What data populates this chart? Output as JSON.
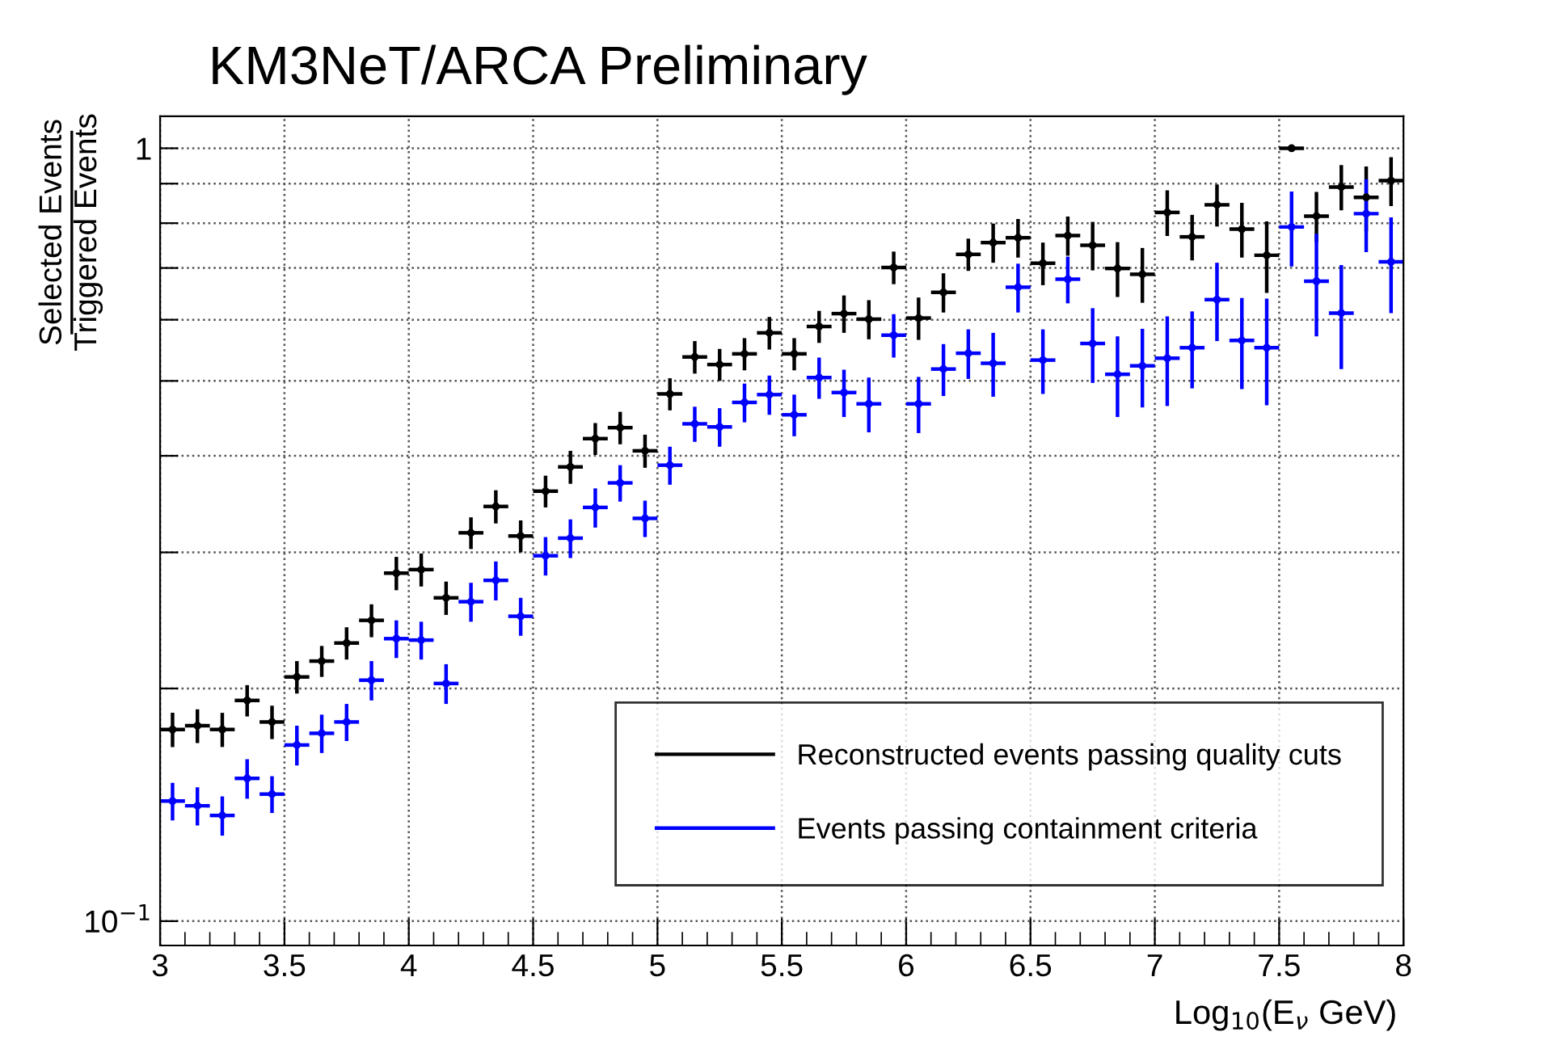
{
  "chart_data": {
    "type": "scatter",
    "title": "KM3NeT/ARCA Preliminary",
    "xlabel": "Log$_{10}$(E$_{ν}$ GeV)",
    "ylabel": "Selected Events\nTriggered Events",
    "x": [
      3.05,
      3.15,
      3.25,
      3.35,
      3.45,
      3.55,
      3.65,
      3.75,
      3.85,
      3.95,
      4.05,
      4.15,
      4.25,
      4.35,
      4.45,
      4.55,
      4.65,
      4.75,
      4.85,
      4.95,
      5.05,
      5.15,
      5.25,
      5.35,
      5.45,
      5.55,
      5.65,
      5.75,
      5.85,
      5.95,
      6.05,
      6.15,
      6.25,
      6.35,
      6.45,
      6.55,
      6.65,
      6.75,
      6.85,
      6.95,
      7.05,
      7.15,
      7.25,
      7.35,
      7.45,
      7.55,
      7.65,
      7.75,
      7.85,
      7.95
    ],
    "series": [
      {
        "name": "Reconstructed events passing quality cuts",
        "color": "#000000",
        "values": [
          0.177,
          0.179,
          0.177,
          0.193,
          0.181,
          0.207,
          0.217,
          0.229,
          0.245,
          0.282,
          0.285,
          0.262,
          0.318,
          0.344,
          0.315,
          0.36,
          0.387,
          0.421,
          0.435,
          0.406,
          0.481,
          0.537,
          0.525,
          0.542,
          0.577,
          0.542,
          0.588,
          0.611,
          0.601,
          0.701,
          0.603,
          0.651,
          0.729,
          0.755,
          0.766,
          0.71,
          0.771,
          0.749,
          0.699,
          0.687,
          0.826,
          0.768,
          0.845,
          0.786,
          0.727,
          1.0,
          0.817,
          0.891,
          0.864,
          0.908
        ],
        "errors": [
          0.009,
          0.009,
          0.009,
          0.009,
          0.009,
          0.01,
          0.01,
          0.011,
          0.012,
          0.014,
          0.014,
          0.013,
          0.015,
          0.017,
          0.015,
          0.017,
          0.019,
          0.02,
          0.021,
          0.02,
          0.023,
          0.026,
          0.025,
          0.026,
          0.028,
          0.026,
          0.028,
          0.034,
          0.035,
          0.034,
          0.038,
          0.038,
          0.035,
          0.044,
          0.044,
          0.045,
          0.045,
          0.054,
          0.057,
          0.056,
          0.056,
          0.052,
          0.053,
          0.064,
          0.077,
          null,
          0.061,
          0.06,
          0.083,
          0.066
        ],
        "xerrors": [
          0.05,
          0.05,
          0.05,
          0.05,
          0.05,
          0.05,
          0.05,
          0.05,
          0.05,
          0.05,
          0.05,
          0.05,
          0.05,
          0.05,
          0.05,
          0.05,
          0.05,
          0.05,
          0.05,
          0.05,
          0.05,
          0.05,
          0.05,
          0.05,
          0.05,
          0.05,
          0.05,
          0.05,
          0.05,
          0.05,
          0.05,
          0.05,
          0.05,
          0.05,
          0.05,
          0.05,
          0.05,
          0.05,
          0.05,
          0.05,
          0.05,
          0.05,
          0.05,
          0.05,
          0.05,
          0.05,
          0.05,
          0.05,
          0.05,
          0.05
        ]
      },
      {
        "name": "Events passing containment criteria",
        "color": "#0000ff",
        "values": [
          0.143,
          0.141,
          0.137,
          0.153,
          0.146,
          0.169,
          0.175,
          0.181,
          0.205,
          0.232,
          0.231,
          0.203,
          0.259,
          0.276,
          0.248,
          0.297,
          0.313,
          0.343,
          0.369,
          0.332,
          0.389,
          0.44,
          0.436,
          0.469,
          0.48,
          0.452,
          0.505,
          0.483,
          0.467,
          0.573,
          0.467,
          0.518,
          0.543,
          0.527,
          0.661,
          0.532,
          0.677,
          0.559,
          0.51,
          0.523,
          0.535,
          0.552,
          0.637,
          0.564,
          0.552,
          0.791,
          0.673,
          0.612,
          0.823,
          0.713
        ],
        "errors": [
          0.008,
          0.008,
          0.008,
          0.009,
          0.008,
          0.01,
          0.01,
          0.01,
          0.012,
          0.013,
          0.013,
          0.012,
          0.015,
          0.016,
          0.014,
          0.017,
          0.018,
          0.02,
          0.02,
          0.018,
          0.022,
          0.023,
          0.025,
          0.027,
          0.028,
          0.028,
          0.031,
          0.034,
          0.038,
          0.037,
          0.039,
          0.04,
          0.04,
          0.05,
          0.048,
          0.051,
          0.047,
          0.062,
          0.061,
          0.061,
          0.071,
          0.063,
          0.074,
          0.076,
          0.087,
          0.088,
          0.102,
          0.094,
          0.089,
          0.101
        ],
        "xerrors": [
          0.05,
          0.05,
          0.05,
          0.05,
          0.05,
          0.05,
          0.05,
          0.05,
          0.05,
          0.05,
          0.05,
          0.05,
          0.05,
          0.05,
          0.05,
          0.05,
          0.05,
          0.05,
          0.05,
          0.05,
          0.05,
          0.05,
          0.05,
          0.05,
          0.05,
          0.05,
          0.05,
          0.05,
          0.05,
          0.05,
          0.05,
          0.05,
          0.05,
          0.05,
          0.05,
          0.05,
          0.05,
          0.05,
          0.05,
          0.05,
          0.05,
          0.05,
          0.05,
          0.05,
          0.05,
          0.05,
          0.05,
          0.05,
          0.05,
          0.05
        ]
      }
    ],
    "xlim": [
      3,
      8
    ],
    "xticks": [
      3,
      3.5,
      4,
      4.5,
      5,
      5.5,
      6,
      6.5,
      7,
      7.5,
      8
    ],
    "ylim": [
      0.093,
      1.1
    ],
    "yticks": [
      {
        "value": 0.1,
        "label": "10$^{−1}$"
      },
      {
        "value": 0.2,
        "label": null
      },
      {
        "value": 0.3,
        "label": null
      },
      {
        "value": 0.4,
        "label": null
      },
      {
        "value": 0.5,
        "label": null
      },
      {
        "value": 0.6,
        "label": null
      },
      {
        "value": 0.7,
        "label": null
      },
      {
        "value": 0.8,
        "label": null
      },
      {
        "value": 0.9,
        "label": null
      },
      1
    ],
    "log": "y",
    "grid": true,
    "legend": "bottom right"
  }
}
